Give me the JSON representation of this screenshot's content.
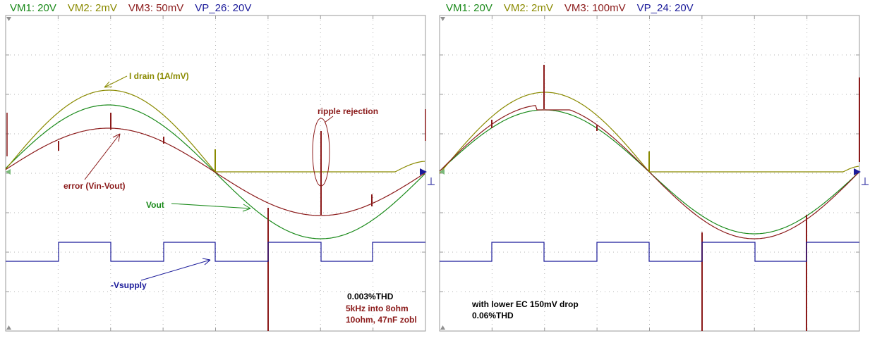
{
  "chart_data": [
    {
      "type": "line",
      "title": "",
      "channels": [
        {
          "label": "VM1: 20V",
          "color": "#1a8a1a"
        },
        {
          "label": "VM2: 2mV",
          "color": "#8a8a00"
        },
        {
          "label": "VM3: 50mV",
          "color": "#8b1a1a"
        },
        {
          "label": "VP_26: 20V",
          "color": "#1a1a9a"
        }
      ],
      "grid": true,
      "annotations": {
        "i_drain": "I drain (1A/mV)",
        "ripple": "ripple rejection",
        "error": "error (Vin-Vout)",
        "vout": "Vout",
        "vsupply": "-Vsupply",
        "thd": "0.003%THD",
        "load": "5kHz into 8ohm",
        "zobel": "10ohm, 47nF zobl"
      }
    },
    {
      "type": "line",
      "title": "",
      "channels": [
        {
          "label": "VM1: 20V",
          "color": "#1a8a1a"
        },
        {
          "label": "VM2: 2mV",
          "color": "#8a8a00"
        },
        {
          "label": "VM3: 100mV",
          "color": "#8b1a1a"
        },
        {
          "label": "VP_24: 20V",
          "color": "#1a1a9a"
        }
      ],
      "grid": true,
      "annotations": {
        "note": "with lower EC 150mV drop",
        "thd": "0.06%THD"
      }
    }
  ]
}
